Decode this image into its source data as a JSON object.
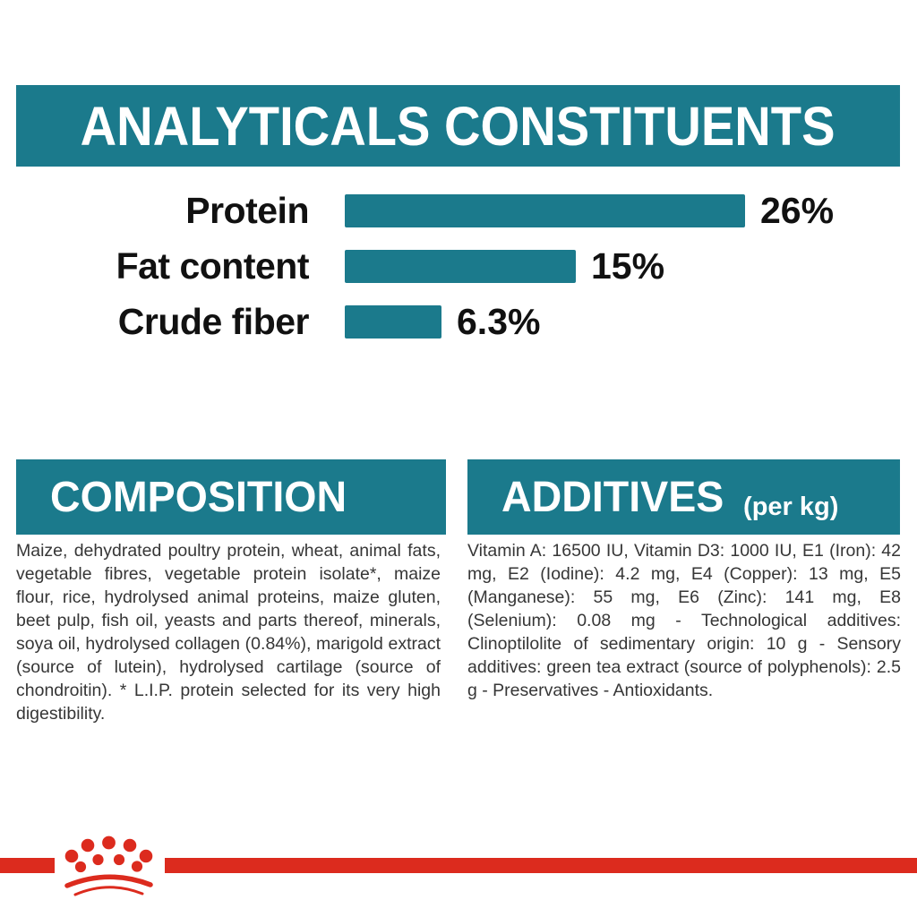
{
  "page": {
    "background": "#ffffff",
    "teal": "#1b7a8c",
    "red": "#dc2b1e",
    "body_text_color": "#363636"
  },
  "header": {
    "title": "ANALYTICALS CONSTITUENTS"
  },
  "chart_data": {
    "type": "bar",
    "orientation": "horizontal",
    "title": "ANALYTICALS CONSTITUENTS",
    "categories": [
      "Protein",
      "Fat content",
      "Crude fiber"
    ],
    "values": [
      26,
      15,
      6.3
    ],
    "value_labels": [
      "26%",
      "15%",
      "6.3%"
    ],
    "unit": "%",
    "xlim": [
      0,
      30
    ],
    "bar_color": "#1b7a8c",
    "grid": false,
    "legend": false
  },
  "composition": {
    "title": "COMPOSITION",
    "body": "Maize, dehydrated poultry protein, wheat, animal fats, vegetable fibres, vegetable protein isolate*, maize flour, rice, hydrolysed animal proteins, maize gluten, beet pulp, fish oil, yeasts and parts thereof, minerals, soya oil, hydrolysed collagen (0.84%), marigold extract (source of lutein), hydrolysed cartilage (source of chondroitin). * L.I.P. protein selected for its very high digestibility."
  },
  "additives": {
    "title": "ADDITIVES",
    "title_suffix": "(per kg)",
    "body": "Vitamin A: 16500 IU, Vitamin D3: 1000 IU, E1 (Iron): 42 mg, E2 (Iodine): 4.2 mg, E4 (Copper): 13 mg, E5 (Manganese): 55 mg, E6 (Zinc): 141 mg, E8 (Selenium): 0.08 mg - Technological additives: Clinoptilolite of sedimentary origin: 10 g - Sensory additives: green tea extract (source of polyphenols): 2.5 g - Preservatives - Antioxidants.",
    "footer_logo": "royal-canin-crown"
  }
}
